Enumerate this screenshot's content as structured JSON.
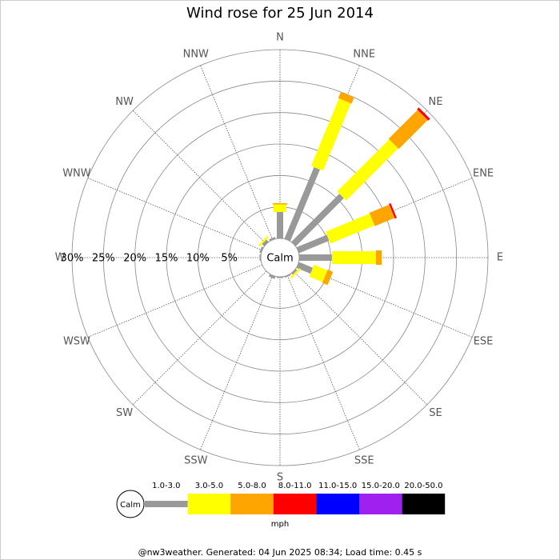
{
  "chart_data": {
    "type": "windrose",
    "title": "Wind rose for 25 Jun 2014",
    "directions": [
      "N",
      "NNE",
      "NE",
      "ENE",
      "E",
      "ESE",
      "SE",
      "SSE",
      "S",
      "SSW",
      "SW",
      "WSW",
      "W",
      "WNW",
      "NW",
      "NNW"
    ],
    "calm_label": "Calm",
    "unit_label": "mph",
    "rlim": [
      0,
      30
    ],
    "rticks": [
      {
        "value": 5,
        "label": "5%"
      },
      {
        "value": 10,
        "label": "10%"
      },
      {
        "value": 15,
        "label": "15%"
      },
      {
        "value": 20,
        "label": "20%"
      },
      {
        "value": 25,
        "label": "25%"
      },
      {
        "value": 30,
        "label": "30%"
      }
    ],
    "series": [
      {
        "name": "1.0-3.0",
        "color": "#999999",
        "values": [
          4.2,
          12.3,
          10.8,
          5.2,
          5.2,
          2.4,
          0.3,
          0.2,
          0.2,
          0.4,
          0,
          0,
          0.2,
          0.3,
          0.5,
          0.3
        ]
      },
      {
        "name": "3.0-5.0",
        "color": "#ffff00",
        "values": [
          1.2,
          11.6,
          11.7,
          7.6,
          7.0,
          2.3,
          0.3,
          0,
          0,
          0,
          0,
          0,
          0,
          0,
          0.3,
          0
        ]
      },
      {
        "name": "5.0-8.0",
        "color": "#ffa500",
        "values": [
          0.2,
          1.1,
          6.5,
          3.4,
          0.9,
          0.9,
          0,
          0,
          0,
          0,
          0,
          0,
          0,
          0,
          0,
          0
        ]
      },
      {
        "name": "8.0-11.0",
        "color": "#ff0000",
        "values": [
          0,
          0,
          0.4,
          0.3,
          0,
          0,
          0,
          0,
          0,
          0,
          0,
          0,
          0,
          0,
          0,
          0
        ]
      },
      {
        "name": "11.0-15.0",
        "color": "#0000ff",
        "values": [
          0,
          0,
          0,
          0,
          0,
          0,
          0,
          0,
          0,
          0,
          0,
          0,
          0,
          0,
          0,
          0
        ]
      },
      {
        "name": "15.0-20.0",
        "color": "#a020f0",
        "values": [
          0,
          0,
          0,
          0,
          0,
          0,
          0,
          0,
          0,
          0,
          0,
          0,
          0,
          0,
          0,
          0
        ]
      },
      {
        "name": "20.0-50.0",
        "color": "#000000",
        "values": [
          0,
          0,
          0,
          0,
          0,
          0,
          0,
          0,
          0,
          0,
          0,
          0,
          0,
          0,
          0,
          0
        ]
      }
    ]
  },
  "footer": "@nw3weather. Generated: 04 Jun 2025 08:34; Load time: 0.45 s"
}
